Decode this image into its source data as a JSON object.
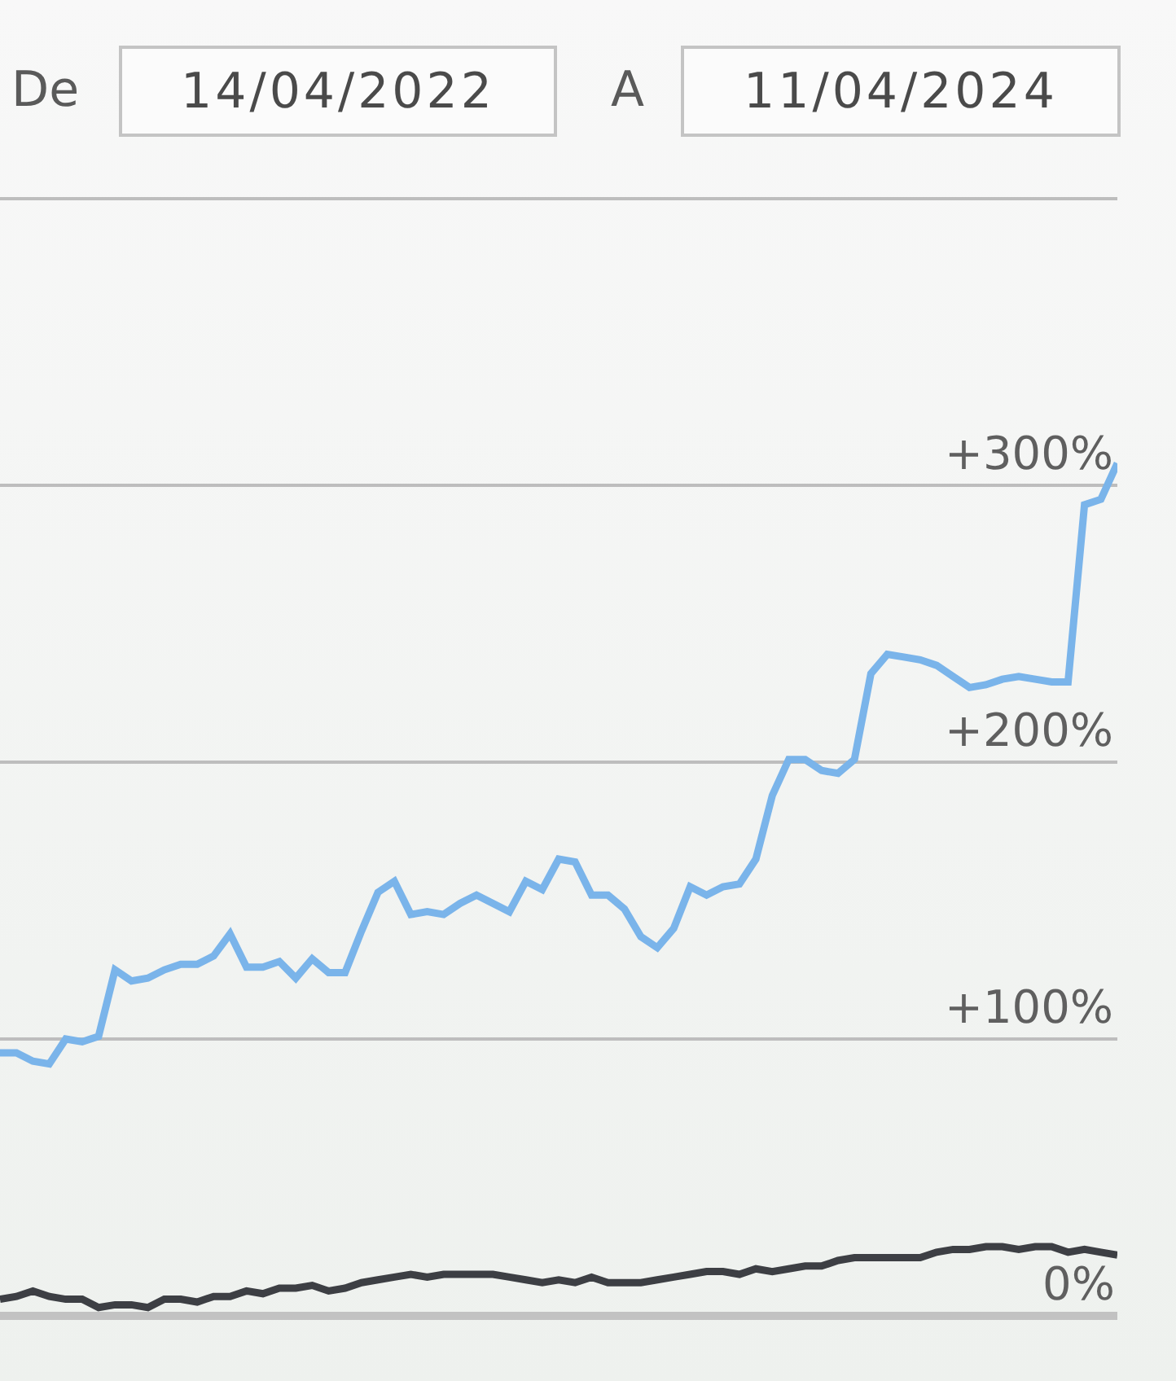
{
  "chart_data": {
    "type": "line",
    "annotations": [
      "De",
      "14/04/2022",
      "A",
      "11/04/2024"
    ],
    "categories": [
      null,
      null,
      null,
      null,
      null,
      null,
      null,
      null,
      null,
      null,
      null,
      null,
      null,
      null,
      null,
      null,
      null,
      null,
      null,
      null,
      null,
      null,
      null,
      null,
      null,
      null,
      null,
      null,
      null,
      null,
      null,
      null,
      null,
      null,
      null,
      null,
      null,
      null,
      null,
      null,
      null,
      null,
      null,
      null,
      null,
      null,
      null,
      null,
      null,
      null,
      null,
      null,
      null,
      null,
      null,
      null,
      null,
      null,
      null,
      null,
      null,
      null,
      null,
      null,
      null,
      null,
      null,
      null,
      null
    ],
    "ylim": [
      0,
      403
    ],
    "yticks": [
      {
        "value": 0,
        "label": "0%"
      },
      {
        "value": 100,
        "label": "+100%"
      },
      {
        "value": 200,
        "label": "+200%"
      },
      {
        "value": 300,
        "label": "+300%"
      }
    ],
    "grid": "y",
    "tick_labels": "y",
    "series": [
      {
        "color": "#7ab4ea",
        "values": [
          95,
          95,
          92,
          91,
          100,
          99,
          101,
          125,
          121,
          122,
          125,
          127,
          127,
          130,
          138,
          126,
          126,
          128,
          122,
          129,
          124,
          124,
          139,
          153,
          157,
          145,
          146,
          145,
          149,
          152,
          149,
          146,
          157,
          154,
          165,
          164,
          152,
          152,
          147,
          137,
          133,
          140,
          155,
          152,
          155,
          156,
          165,
          188,
          201,
          201,
          197,
          196,
          201,
          232,
          239,
          238,
          237,
          235,
          231,
          227,
          228,
          230,
          231,
          230,
          229,
          229,
          293,
          295,
          308
        ]
      },
      {
        "color": "#3d3f44",
        "values": [
          6,
          7,
          9,
          7,
          6,
          6,
          3,
          4,
          4,
          3,
          6,
          6,
          5,
          7,
          7,
          9,
          8,
          10,
          10,
          11,
          9,
          10,
          12,
          13,
          14,
          15,
          14,
          15,
          15,
          15,
          15,
          14,
          13,
          12,
          13,
          12,
          14,
          12,
          12,
          12,
          13,
          14,
          15,
          16,
          16,
          15,
          17,
          16,
          17,
          18,
          18,
          20,
          21,
          21,
          21,
          21,
          21,
          23,
          24,
          24,
          25,
          25,
          24,
          25,
          25,
          23,
          24,
          23,
          22
        ]
      }
    ]
  }
}
